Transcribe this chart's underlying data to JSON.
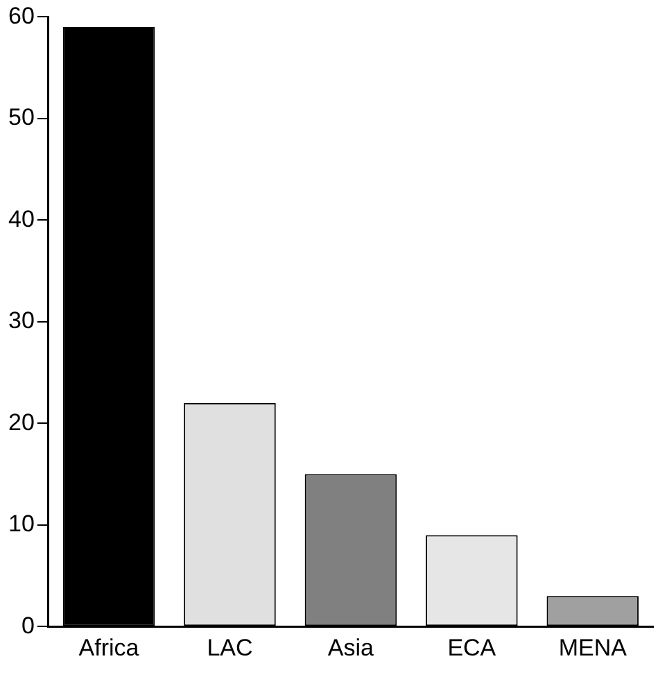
{
  "chart_data": {
    "type": "bar",
    "categories": [
      "Africa",
      "LAC",
      "Asia",
      "ECA",
      "MENA"
    ],
    "values": [
      59,
      22,
      15,
      9,
      3
    ],
    "colors": [
      "#000000",
      "#e0e0e0",
      "#808080",
      "#e6e6e6",
      "#a0a0a0"
    ],
    "ylim": [
      0,
      60
    ],
    "yticks": [
      0,
      10,
      20,
      30,
      40,
      50,
      60
    ],
    "grid": false,
    "legend": false
  }
}
